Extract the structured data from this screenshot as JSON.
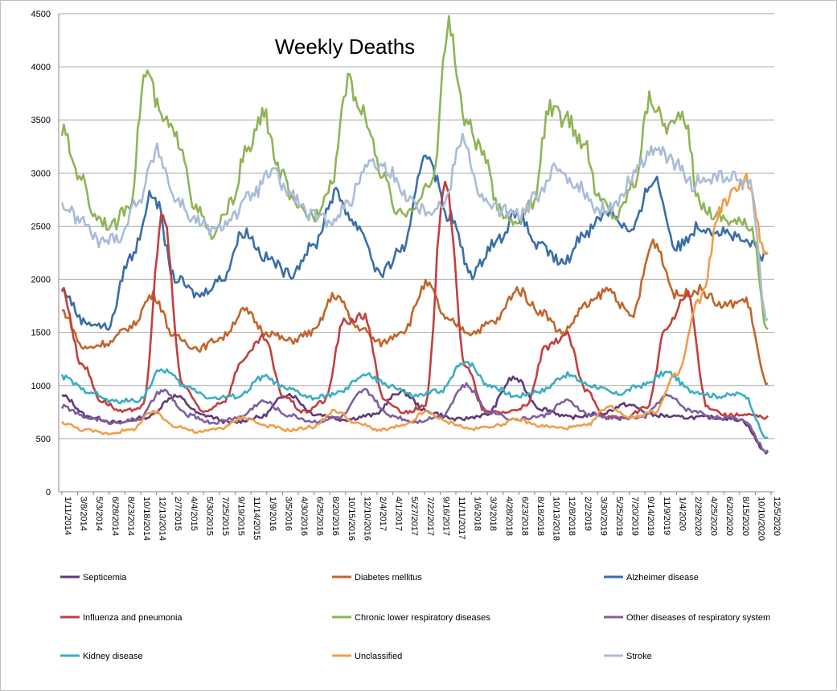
{
  "chart_data": {
    "type": "line",
    "title": "Weekly Deaths",
    "xlabel": "",
    "ylabel": "",
    "ylim": [
      0,
      4500
    ],
    "yticks": [
      0,
      500,
      1000,
      1500,
      2000,
      2500,
      3000,
      3500,
      4000,
      4500
    ],
    "grid": true,
    "legend_position": "bottom",
    "x_start": "1/11/2014",
    "x_end": "12/26/2020",
    "x_step_days": 7,
    "xtick_labels": [
      "1/11/2014",
      "3/8/2014",
      "5/3/2014",
      "6/28/2014",
      "8/23/2014",
      "10/18/2014",
      "12/13/2014",
      "2/7/2015",
      "4/4/2015",
      "5/30/2015",
      "7/25/2015",
      "9/19/2015",
      "11/14/2015",
      "1/9/2016",
      "3/5/2016",
      "4/30/2016",
      "6/25/2016",
      "8/20/2016",
      "10/15/2016",
      "12/10/2016",
      "2/4/2017",
      "4/1/2017",
      "5/27/2017",
      "7/22/2017",
      "9/16/2017",
      "11/11/2017",
      "1/6/2018",
      "3/3/2018",
      "4/28/2018",
      "6/23/2018",
      "8/18/2018",
      "10/13/2018",
      "12/8/2018",
      "2/2/2019",
      "3/30/2019",
      "5/25/2019",
      "7/20/2019",
      "9/14/2019",
      "11/9/2019",
      "1/4/2020",
      "2/29/2020",
      "4/25/2020",
      "6/20/2020",
      "8/15/2020",
      "10/10/2020",
      "12/5/2020"
    ],
    "series": [
      {
        "name": "Septicemia",
        "color": "#5f3b7a",
        "values": [
          900,
          700,
          650,
          700,
          900,
          720,
          650,
          700,
          920,
          730,
          680,
          720,
          940,
          750,
          680,
          720,
          1070,
          780,
          700,
          730,
          820,
          720,
          700,
          700,
          680,
          370
        ]
      },
      {
        "name": "Diabetes mellitus",
        "color": "#c0662a",
        "values": [
          1700,
          1350,
          1400,
          1550,
          1850,
          1450,
          1350,
          1450,
          1700,
          1500,
          1420,
          1500,
          1850,
          1550,
          1400,
          1520,
          1950,
          1600,
          1500,
          1600,
          1900,
          1700,
          1500,
          1750,
          1900,
          1650,
          2350,
          1850,
          1900,
          1750,
          1800,
          1000
        ]
      },
      {
        "name": "Alzheimer disease",
        "color": "#3a6ea8",
        "values": [
          1900,
          1600,
          1550,
          2200,
          2800,
          2000,
          1850,
          2000,
          2450,
          2200,
          2050,
          2300,
          2800,
          2500,
          2050,
          2300,
          3200,
          2600,
          2050,
          2350,
          2600,
          2300,
          2150,
          2450,
          2650,
          2450,
          2950,
          2300,
          2500,
          2450,
          2350,
          2200
        ]
      },
      {
        "name": "Influenza and pneumonia",
        "color": "#c0403d",
        "values": [
          1900,
          1200,
          850,
          750,
          800,
          2600,
          1000,
          750,
          850,
          1250,
          1450,
          900,
          750,
          850,
          1600,
          1650,
          850,
          750,
          800,
          2950,
          1200,
          750,
          750,
          800,
          1350,
          1480,
          950,
          700,
          700,
          800,
          1550,
          1850,
          800,
          720,
          720,
          700
        ]
      },
      {
        "name": "Chronic lower respiratory diseases",
        "color": "#8fb456",
        "values": [
          3400,
          3000,
          2600,
          2500,
          2700,
          3950,
          3500,
          3300,
          2650,
          2400,
          2700,
          3200,
          3550,
          3000,
          2650,
          2600,
          2900,
          3850,
          3550,
          3000,
          2600,
          2700,
          2900,
          4380,
          3500,
          3200,
          2650,
          2550,
          2700,
          3600,
          3500,
          3300,
          2750,
          2600,
          2900,
          3700,
          3450,
          3500,
          2700,
          2600,
          2550,
          2500,
          1500
        ]
      },
      {
        "name": "Other diseases of respiratory system",
        "color": "#7e5fa0",
        "values": [
          800,
          700,
          650,
          680,
          950,
          720,
          650,
          700,
          850,
          720,
          660,
          700,
          950,
          720,
          660,
          710,
          1000,
          750,
          680,
          710,
          850,
          720,
          690,
          700,
          900,
          760,
          700,
          680,
          380
        ]
      },
      {
        "name": "Kidney disease",
        "color": "#3aaec2",
        "values": [
          1080,
          950,
          850,
          860,
          1150,
          980,
          880,
          900,
          1080,
          960,
          880,
          930,
          1100,
          1000,
          900,
          950,
          1230,
          1000,
          900,
          950,
          1100,
          1000,
          920,
          1000,
          1120,
          950,
          900,
          920,
          500
        ]
      },
      {
        "name": "Unclassified",
        "color": "#f19d4b",
        "values": [
          650,
          580,
          550,
          580,
          750,
          620,
          560,
          600,
          700,
          620,
          580,
          610,
          760,
          640,
          580,
          620,
          750,
          650,
          590,
          620,
          680,
          620,
          600,
          620,
          800,
          700,
          750,
          1100,
          1800,
          2700,
          2950,
          2200
        ]
      },
      {
        "name": "Stroke",
        "color": "#a9bcd8",
        "values": [
          2700,
          2550,
          2350,
          2400,
          2750,
          3200,
          2750,
          2550,
          2450,
          2600,
          2800,
          3000,
          2800,
          2600,
          2550,
          2700,
          3100,
          3050,
          2800,
          2650,
          2700,
          3350,
          2750,
          2650,
          2600,
          2800,
          3050,
          2900,
          2650,
          2700,
          3000,
          3250,
          3100,
          2900,
          2950,
          2950,
          2900,
          1600
        ]
      }
    ]
  }
}
